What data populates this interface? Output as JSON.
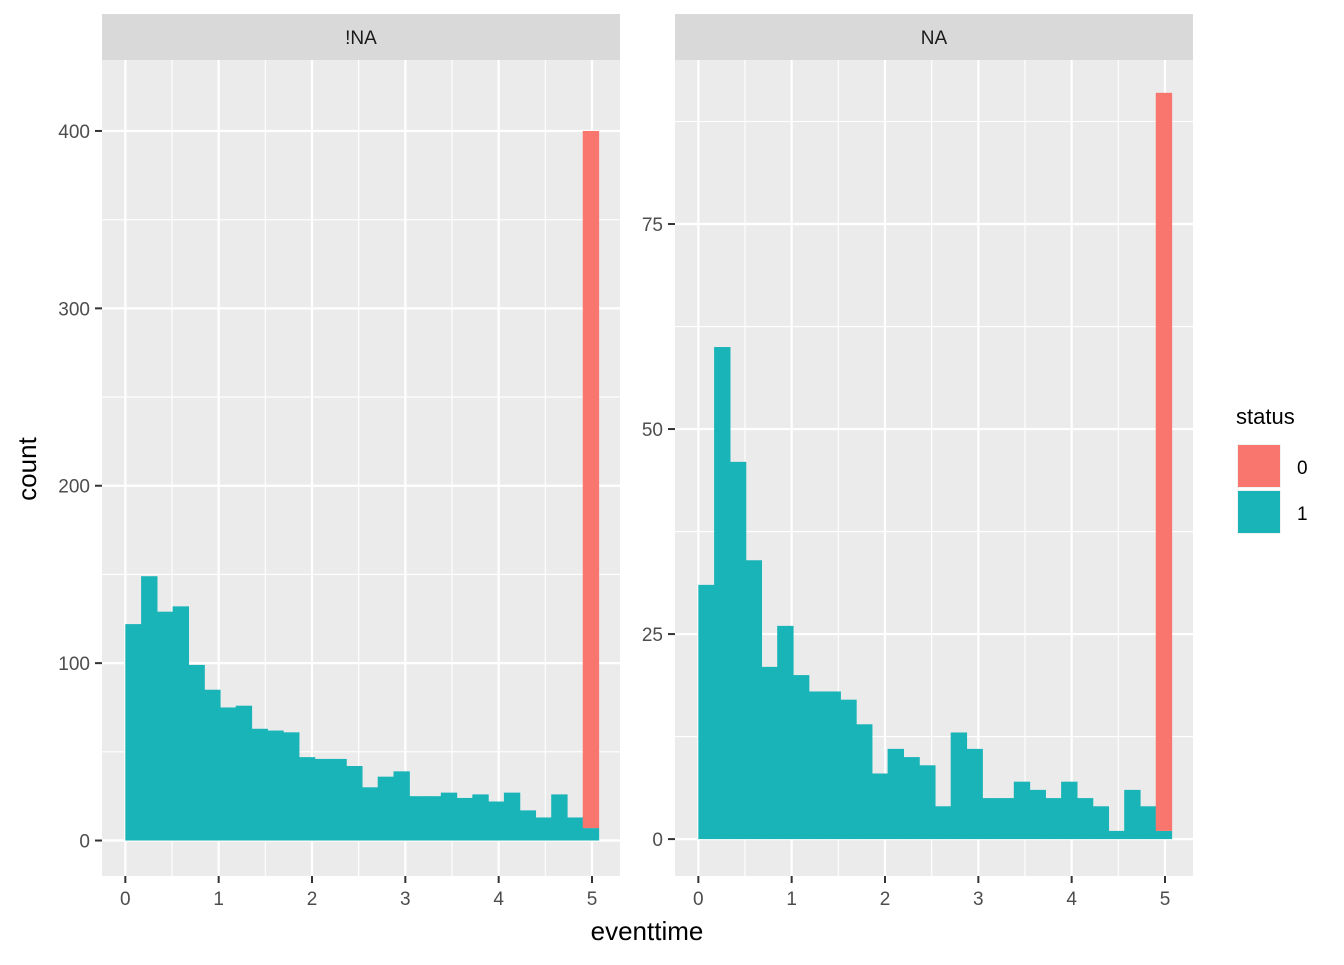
{
  "chart_data": {
    "type": "bar",
    "subtype": "stacked-histogram-faceted",
    "xlabel": "eventtime",
    "ylabel": "count",
    "legend": {
      "title": "status",
      "placement": "right",
      "entries": [
        {
          "label": "0",
          "color": "#F8766D"
        },
        {
          "label": "1",
          "color": "#19B4B8"
        }
      ]
    },
    "x_bins": [
      0.0,
      0.169,
      0.338,
      0.507,
      0.676,
      0.845,
      1.014,
      1.183,
      1.352,
      1.521,
      1.69,
      1.859,
      2.028,
      2.197,
      2.366,
      2.535,
      2.704,
      2.873,
      3.042,
      3.211,
      3.38,
      3.549,
      3.718,
      3.887,
      4.056,
      4.225,
      4.394,
      4.563,
      4.732,
      4.901,
      5.07
    ],
    "panels": [
      {
        "strip": "!NA",
        "xlim": [
          -0.25,
          5.3
        ],
        "ylim": [
          -20,
          440
        ],
        "x_ticks": [
          "0",
          "1",
          "2",
          "3",
          "4",
          "5"
        ],
        "y_ticks": [
          "0",
          "100",
          "200",
          "300",
          "400"
        ],
        "y_tick_values": [
          0,
          100,
          200,
          300,
          400
        ],
        "y_minor": [
          50,
          150,
          250,
          350
        ],
        "series": [
          {
            "name": "1",
            "values": [
              122,
              149,
              129,
              132,
              99,
              85,
              75,
              76,
              63,
              62,
              61,
              47,
              46,
              46,
              42,
              30,
              36,
              39,
              25,
              25,
              27,
              24,
              26,
              22,
              27,
              17,
              13,
              26,
              13,
              7
            ]
          },
          {
            "name": "0",
            "values": [
              0,
              0,
              0,
              0,
              0,
              0,
              0,
              0,
              0,
              0,
              0,
              0,
              0,
              0,
              0,
              0,
              0,
              0,
              0,
              0,
              0,
              0,
              0,
              0,
              0,
              0,
              0,
              0,
              0,
              393
            ]
          }
        ]
      },
      {
        "strip": "NA",
        "xlim": [
          -0.25,
          5.3
        ],
        "ylim": [
          -4.5,
          95
        ],
        "x_ticks": [
          "0",
          "1",
          "2",
          "3",
          "4",
          "5"
        ],
        "y_ticks": [
          "0",
          "25",
          "50",
          "75"
        ],
        "y_tick_values": [
          0,
          25,
          50,
          75
        ],
        "y_minor": [
          12.5,
          37.5,
          62.5,
          87.5
        ],
        "series": [
          {
            "name": "1",
            "values": [
              31,
              60,
              46,
              34,
              21,
              26,
              20,
              18,
              18,
              17,
              14,
              8,
              11,
              10,
              9,
              4,
              13,
              11,
              5,
              5,
              7,
              6,
              5,
              7,
              5,
              4,
              1,
              6,
              4,
              1
            ]
          },
          {
            "name": "0",
            "values": [
              0,
              0,
              0,
              0,
              0,
              0,
              0,
              0,
              0,
              0,
              0,
              0,
              0,
              0,
              0,
              0,
              0,
              0,
              0,
              0,
              0,
              0,
              0,
              0,
              0,
              0,
              0,
              0,
              0,
              90
            ]
          }
        ]
      }
    ],
    "grid": true
  }
}
